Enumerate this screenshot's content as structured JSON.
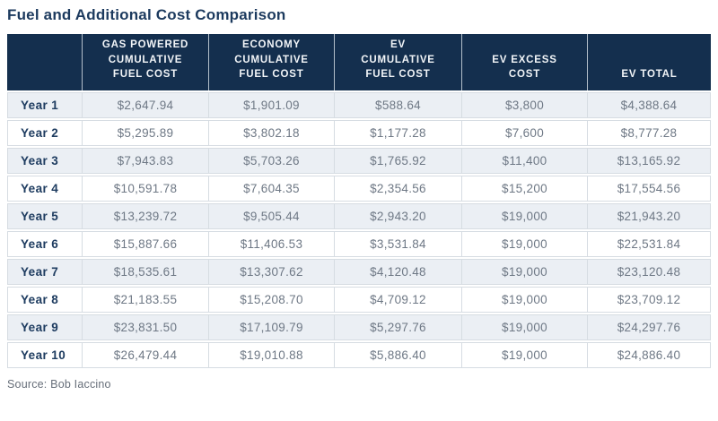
{
  "page": {
    "title": "Fuel and Additional Cost Comparison",
    "source": "Source: Bob Iaccino"
  },
  "colors": {
    "header_bg": "#142f4e",
    "title_text": "#1c3a5e",
    "row_alt_bg": "#ebeff4",
    "row_bg": "#ffffff",
    "body_text": "#6e7885",
    "row_label_text": "#1e3c60",
    "border": "#d6dce2",
    "header_divider": "#b3bfca",
    "source_text": "#666e79"
  },
  "chart_data": {
    "type": "table",
    "title": "Fuel and Additional Cost Comparison",
    "source": "Source: Bob Iaccino",
    "columns": [
      "",
      "GAS POWERED\nCUMULATIVE\nFUEL COST",
      "ECONOMY\nCUMULATIVE\nFUEL COST",
      "EV\nCUMULATIVE\nFUEL COST",
      "EV EXCESS\nCOST",
      "EV TOTAL"
    ],
    "rows": [
      {
        "label": "Year 1",
        "values": [
          "$2,647.94",
          "$1,901.09",
          "$588.64",
          "$3,800",
          "$4,388.64"
        ]
      },
      {
        "label": "Year 2",
        "values": [
          "$5,295.89",
          "$3,802.18",
          "$1,177.28",
          "$7,600",
          "$8,777.28"
        ]
      },
      {
        "label": "Year 3",
        "values": [
          "$7,943.83",
          "$5,703.26",
          "$1,765.92",
          "$11,400",
          "$13,165.92"
        ]
      },
      {
        "label": "Year 4",
        "values": [
          "$10,591.78",
          "$7,604.35",
          "$2,354.56",
          "$15,200",
          "$17,554.56"
        ]
      },
      {
        "label": "Year 5",
        "values": [
          "$13,239.72",
          "$9,505.44",
          "$2,943.20",
          "$19,000",
          "$21,943.20"
        ]
      },
      {
        "label": "Year 6",
        "values": [
          "$15,887.66",
          "$11,406.53",
          "$3,531.84",
          "$19,000",
          "$22,531.84"
        ]
      },
      {
        "label": "Year 7",
        "values": [
          "$18,535.61",
          "$13,307.62",
          "$4,120.48",
          "$19,000",
          "$23,120.48"
        ]
      },
      {
        "label": "Year 8",
        "values": [
          "$21,183.55",
          "$15,208.70",
          "$4,709.12",
          "$19,000",
          "$23,709.12"
        ]
      },
      {
        "label": "Year 9",
        "values": [
          "$23,831.50",
          "$17,109.79",
          "$5,297.76",
          "$19,000",
          "$24,297.76"
        ]
      },
      {
        "label": "Year 10",
        "values": [
          "$26,479.44",
          "$19,010.88",
          "$5,886.40",
          "$19,000",
          "$24,886.40"
        ]
      }
    ]
  }
}
